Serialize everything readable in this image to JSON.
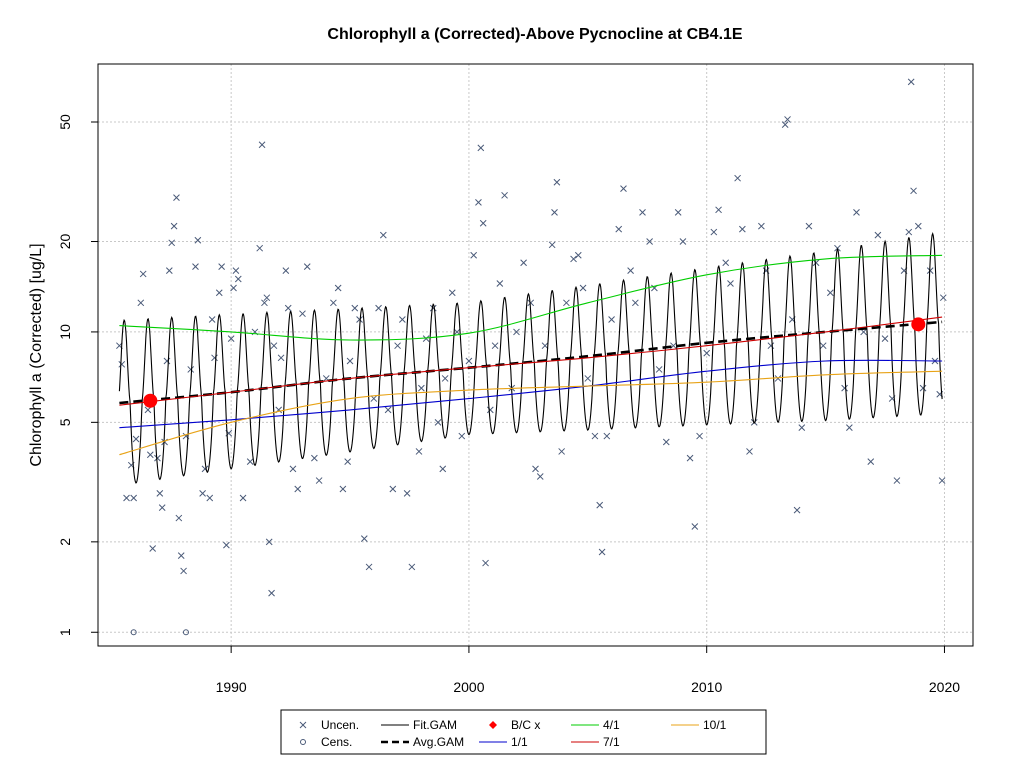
{
  "chart_data": {
    "type": "scatter",
    "title": "Chlorophyll a (Corrected)-Above Pycnocline at CB4.1E",
    "xlabel": "",
    "ylabel": "Chlorophyll a (Corrected) [ug/L]",
    "x_ticks": [
      1990,
      2000,
      2010,
      2020
    ],
    "y_ticks": [
      1,
      2,
      5,
      10,
      20,
      50
    ],
    "y_scale": "log",
    "xlim": [
      1984.4,
      2021.2
    ],
    "ylim": [
      0.9,
      78
    ],
    "grid": "dotted gray at major ticks",
    "legend_position": "bottom-center",
    "legend": [
      {
        "label": "Uncen.",
        "kind": "point",
        "symbol": "x",
        "color": "#4a5a78"
      },
      {
        "label": "Cens.",
        "kind": "point",
        "symbol": "o",
        "color": "#4a5a78"
      },
      {
        "label": "Fit.GAM",
        "kind": "line",
        "color": "#000000",
        "dash": "solid"
      },
      {
        "label": "Avg.GAM",
        "kind": "line",
        "color": "#000000",
        "dash": "dashed"
      },
      {
        "label": "B/C x",
        "kind": "point",
        "symbol": "diamond",
        "color": "#ff0000"
      },
      {
        "label": "1/1",
        "kind": "line",
        "color": "#0000cd",
        "dash": "solid"
      },
      {
        "label": "4/1",
        "kind": "line",
        "color": "#00cd00",
        "dash": "solid"
      },
      {
        "label": "7/1",
        "kind": "line",
        "color": "#cd0000",
        "dash": "solid"
      },
      {
        "label": "10/1",
        "kind": "line",
        "color": "#e8a317",
        "dash": "solid"
      }
    ],
    "series": [
      {
        "name": "Uncen.",
        "type": "scatter",
        "color": "#4a5a78",
        "points": [
          [
            1985.3,
            9.0
          ],
          [
            1985.4,
            7.8
          ],
          [
            1985.6,
            2.8
          ],
          [
            1985.8,
            3.6
          ],
          [
            1985.9,
            2.8
          ],
          [
            1986.0,
            4.4
          ],
          [
            1986.2,
            12.5
          ],
          [
            1986.3,
            15.6
          ],
          [
            1986.5,
            5.5
          ],
          [
            1986.6,
            3.9
          ],
          [
            1986.7,
            1.9
          ],
          [
            1986.9,
            3.8
          ],
          [
            1987.0,
            2.9
          ],
          [
            1987.1,
            2.6
          ],
          [
            1987.2,
            4.3
          ],
          [
            1987.3,
            8.0
          ],
          [
            1987.4,
            16.0
          ],
          [
            1987.5,
            19.8
          ],
          [
            1987.6,
            22.5
          ],
          [
            1987.7,
            28.0
          ],
          [
            1987.8,
            2.4
          ],
          [
            1987.9,
            1.8
          ],
          [
            1988.0,
            1.6
          ],
          [
            1988.1,
            4.5
          ],
          [
            1988.3,
            7.5
          ],
          [
            1988.5,
            16.5
          ],
          [
            1988.6,
            20.2
          ],
          [
            1988.8,
            2.9
          ],
          [
            1988.9,
            3.5
          ],
          [
            1989.1,
            2.8
          ],
          [
            1989.2,
            11.0
          ],
          [
            1989.3,
            8.2
          ],
          [
            1989.5,
            13.5
          ],
          [
            1989.6,
            16.5
          ],
          [
            1989.8,
            1.95
          ],
          [
            1989.9,
            4.6
          ],
          [
            1990.0,
            9.5
          ],
          [
            1990.1,
            14.0
          ],
          [
            1990.2,
            16.0
          ],
          [
            1990.3,
            15.0
          ],
          [
            1990.5,
            2.8
          ],
          [
            1990.8,
            3.7
          ],
          [
            1991.0,
            10.0
          ],
          [
            1991.2,
            19.0
          ],
          [
            1991.3,
            42.0
          ],
          [
            1991.4,
            12.5
          ],
          [
            1991.5,
            13.0
          ],
          [
            1991.6,
            2.0
          ],
          [
            1991.7,
            1.35
          ],
          [
            1991.8,
            9.0
          ],
          [
            1992.0,
            5.5
          ],
          [
            1992.1,
            8.2
          ],
          [
            1992.3,
            16.0
          ],
          [
            1992.4,
            12.0
          ],
          [
            1992.6,
            3.5
          ],
          [
            1992.8,
            3.0
          ],
          [
            1993.0,
            11.5
          ],
          [
            1993.2,
            16.5
          ],
          [
            1993.5,
            3.8
          ],
          [
            1993.7,
            3.2
          ],
          [
            1994.0,
            7.0
          ],
          [
            1994.3,
            12.5
          ],
          [
            1994.5,
            14.0
          ],
          [
            1994.7,
            3.0
          ],
          [
            1994.9,
            3.7
          ],
          [
            1995.0,
            8.0
          ],
          [
            1995.2,
            12.0
          ],
          [
            1995.4,
            11.0
          ],
          [
            1995.6,
            2.05
          ],
          [
            1995.8,
            1.65
          ],
          [
            1996.0,
            6.0
          ],
          [
            1996.2,
            12.0
          ],
          [
            1996.4,
            21.0
          ],
          [
            1996.6,
            5.5
          ],
          [
            1996.8,
            3.0
          ],
          [
            1997.0,
            9.0
          ],
          [
            1997.2,
            11.0
          ],
          [
            1997.4,
            2.9
          ],
          [
            1997.6,
            1.65
          ],
          [
            1997.9,
            4.0
          ],
          [
            1998.0,
            6.5
          ],
          [
            1998.2,
            9.5
          ],
          [
            1998.5,
            12.0
          ],
          [
            1998.7,
            5.0
          ],
          [
            1998.9,
            3.5
          ],
          [
            1999.0,
            7.0
          ],
          [
            1999.3,
            13.5
          ],
          [
            1999.5,
            10.0
          ],
          [
            1999.7,
            4.5
          ],
          [
            2000.0,
            8.0
          ],
          [
            2000.2,
            18.0
          ],
          [
            2000.4,
            27.0
          ],
          [
            2000.5,
            41.0
          ],
          [
            2000.6,
            23.0
          ],
          [
            2000.7,
            1.7
          ],
          [
            2000.9,
            5.5
          ],
          [
            2001.1,
            9.0
          ],
          [
            2001.3,
            14.5
          ],
          [
            2001.5,
            28.5
          ],
          [
            2001.8,
            6.5
          ],
          [
            2002.0,
            10.0
          ],
          [
            2002.3,
            17.0
          ],
          [
            2002.6,
            12.5
          ],
          [
            2002.8,
            3.5
          ],
          [
            2003.0,
            3.3
          ],
          [
            2003.2,
            9.0
          ],
          [
            2003.5,
            19.5
          ],
          [
            2003.6,
            25.0
          ],
          [
            2003.7,
            31.5
          ],
          [
            2003.9,
            4.0
          ],
          [
            2004.1,
            12.5
          ],
          [
            2004.4,
            17.5
          ],
          [
            2004.6,
            18.0
          ],
          [
            2004.8,
            14.0
          ],
          [
            2005.0,
            7.0
          ],
          [
            2005.3,
            4.5
          ],
          [
            2005.5,
            2.65
          ],
          [
            2005.6,
            1.85
          ],
          [
            2005.8,
            4.5
          ],
          [
            2006.0,
            11.0
          ],
          [
            2006.3,
            22.0
          ],
          [
            2006.5,
            30.0
          ],
          [
            2006.8,
            16.0
          ],
          [
            2007.0,
            12.5
          ],
          [
            2007.3,
            25.0
          ],
          [
            2007.6,
            20.0
          ],
          [
            2007.8,
            14.0
          ],
          [
            2008.0,
            7.5
          ],
          [
            2008.3,
            4.3
          ],
          [
            2008.6,
            9.0
          ],
          [
            2008.8,
            25.0
          ],
          [
            2009.0,
            20.0
          ],
          [
            2009.3,
            3.8
          ],
          [
            2009.5,
            2.25
          ],
          [
            2009.7,
            4.5
          ],
          [
            2010.0,
            8.5
          ],
          [
            2010.3,
            21.5
          ],
          [
            2010.5,
            25.5
          ],
          [
            2010.8,
            17.0
          ],
          [
            2011.0,
            14.5
          ],
          [
            2011.3,
            32.5
          ],
          [
            2011.5,
            22.0
          ],
          [
            2011.8,
            4.0
          ],
          [
            2012.0,
            5.0
          ],
          [
            2012.3,
            22.5
          ],
          [
            2012.5,
            16.0
          ],
          [
            2012.7,
            9.0
          ],
          [
            2013.0,
            7.0
          ],
          [
            2013.3,
            49.0
          ],
          [
            2013.4,
            51.0
          ],
          [
            2013.6,
            11.0
          ],
          [
            2013.8,
            2.55
          ],
          [
            2014.0,
            4.8
          ],
          [
            2014.3,
            22.5
          ],
          [
            2014.6,
            17.0
          ],
          [
            2014.9,
            9.0
          ],
          [
            2015.2,
            13.5
          ],
          [
            2015.5,
            19.0
          ],
          [
            2015.8,
            6.5
          ],
          [
            2016.0,
            4.8
          ],
          [
            2016.3,
            25.0
          ],
          [
            2016.6,
            10.0
          ],
          [
            2016.9,
            3.7
          ],
          [
            2017.2,
            21.0
          ],
          [
            2017.5,
            9.5
          ],
          [
            2017.8,
            6.0
          ],
          [
            2018.0,
            3.2
          ],
          [
            2018.3,
            16.0
          ],
          [
            2018.5,
            21.5
          ],
          [
            2018.6,
            68.0
          ],
          [
            2018.7,
            29.5
          ],
          [
            2018.9,
            22.5
          ],
          [
            2019.1,
            6.5
          ],
          [
            2019.4,
            16.0
          ],
          [
            2019.6,
            8.0
          ],
          [
            2019.8,
            6.2
          ],
          [
            2019.9,
            3.2
          ],
          [
            2019.95,
            13.0
          ]
        ]
      },
      {
        "name": "Cens.",
        "type": "scatter",
        "color": "#4a5a78",
        "points": [
          [
            1985.9,
            1.0
          ],
          [
            1988.1,
            1.0
          ]
        ]
      },
      {
        "name": "Fit.GAM",
        "type": "seasonal-line",
        "color": "#000000",
        "start": 1985.3,
        "end": 2019.9,
        "center": [
          [
            1985.3,
            5.8
          ],
          [
            1995,
            6.9
          ],
          [
            2005,
            8.2
          ],
          [
            2015,
            9.7
          ],
          [
            2019.9,
            10.7
          ]
        ],
        "amplitude_log": [
          [
            1985.3,
            0.5
          ],
          [
            2000,
            0.4
          ],
          [
            2019.9,
            0.55
          ]
        ]
      },
      {
        "name": "Avg.GAM",
        "type": "line",
        "color": "#000000",
        "dash": "dashed",
        "points": [
          [
            1985.3,
            5.8
          ],
          [
            1990,
            6.3
          ],
          [
            1995,
            7.0
          ],
          [
            2000,
            7.6
          ],
          [
            2005,
            8.3
          ],
          [
            2010,
            9.2
          ],
          [
            2015,
            10.0
          ],
          [
            2019.9,
            10.8
          ]
        ]
      },
      {
        "name": "1/1",
        "type": "line",
        "color": "#0000cd",
        "points": [
          [
            1985.3,
            4.8
          ],
          [
            1990,
            5.1
          ],
          [
            1995,
            5.5
          ],
          [
            2000,
            6.0
          ],
          [
            2005,
            6.6
          ],
          [
            2010,
            7.4
          ],
          [
            2015,
            8.0
          ],
          [
            2019.9,
            8.0
          ]
        ]
      },
      {
        "name": "4/1",
        "type": "line",
        "color": "#00cd00",
        "points": [
          [
            1985.3,
            10.5
          ],
          [
            1990,
            10.0
          ],
          [
            1995,
            9.4
          ],
          [
            2000,
            9.9
          ],
          [
            2005,
            12.5
          ],
          [
            2010,
            15.5
          ],
          [
            2015,
            17.5
          ],
          [
            2019.9,
            18.0
          ]
        ]
      },
      {
        "name": "7/1",
        "type": "line",
        "color": "#cd0000",
        "points": [
          [
            1985.3,
            5.7
          ],
          [
            1990,
            6.3
          ],
          [
            1995,
            7.0
          ],
          [
            2000,
            7.6
          ],
          [
            2005,
            8.2
          ],
          [
            2010,
            9.0
          ],
          [
            2015,
            10.0
          ],
          [
            2019.9,
            11.2
          ]
        ]
      },
      {
        "name": "10/1",
        "type": "line",
        "color": "#e8a317",
        "points": [
          [
            1985.3,
            3.9
          ],
          [
            1990,
            5.0
          ],
          [
            1995,
            6.0
          ],
          [
            2000,
            6.4
          ],
          [
            2005,
            6.6
          ],
          [
            2010,
            6.8
          ],
          [
            2015,
            7.2
          ],
          [
            2019.9,
            7.4
          ]
        ]
      },
      {
        "name": "B/C x",
        "type": "marker",
        "color": "#ff0000",
        "points": [
          [
            1986.6,
            5.9
          ],
          [
            2018.9,
            10.6
          ]
        ]
      }
    ]
  }
}
